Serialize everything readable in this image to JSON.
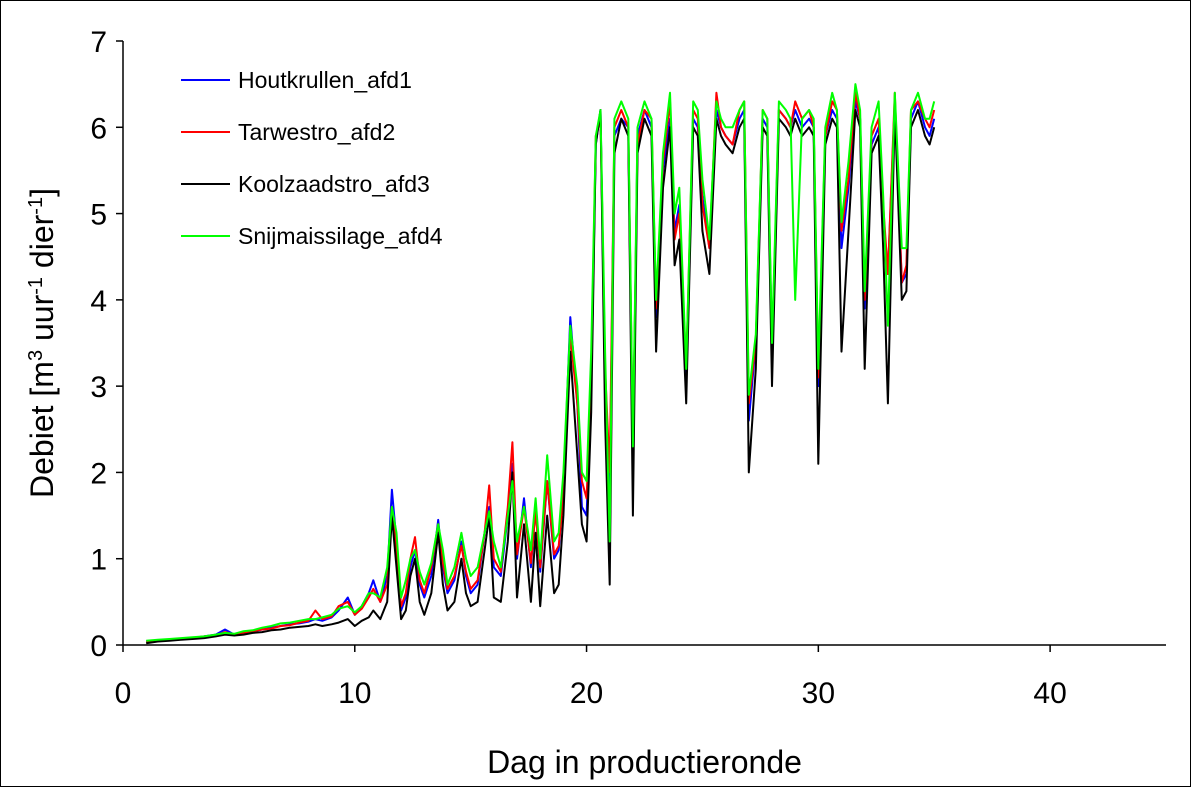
{
  "chart_data": {
    "type": "line",
    "title": "",
    "xlabel": "Dag in productieronde",
    "ylabel": "Debiet [m³ uur⁻¹ dier⁻¹]",
    "ylabel_parts": [
      "Debiet [m",
      "3",
      " uur",
      "-1",
      " dier",
      "-1",
      "]"
    ],
    "xlim": [
      0,
      45
    ],
    "ylim": [
      0,
      7
    ],
    "xticks": [
      0,
      10,
      20,
      30,
      40
    ],
    "yticks": [
      0,
      1,
      2,
      3,
      4,
      5,
      6,
      7
    ],
    "grid": false,
    "legend_position": "top-left",
    "series": [
      {
        "name": "Houtkrullen_afd1",
        "color": "#0000ff",
        "x": [
          1.0,
          1.5,
          2.0,
          2.5,
          3.0,
          3.5,
          4.0,
          4.4,
          4.8,
          5.2,
          5.6,
          6.0,
          6.4,
          6.8,
          7.2,
          7.6,
          8.0,
          8.3,
          8.6,
          9.0,
          9.3,
          9.7,
          10.0,
          10.3,
          10.6,
          10.8,
          11.1,
          11.4,
          11.6,
          11.8,
          12.0,
          12.2,
          12.4,
          12.6,
          12.8,
          13.0,
          13.3,
          13.6,
          13.8,
          14.0,
          14.3,
          14.6,
          14.8,
          15.0,
          15.3,
          15.6,
          15.8,
          16.0,
          16.3,
          16.6,
          16.8,
          17.0,
          17.3,
          17.6,
          17.8,
          18.0,
          18.3,
          18.6,
          18.8,
          19.0,
          19.3,
          19.6,
          19.8,
          20.0,
          20.2,
          20.4,
          20.6,
          20.8,
          21.0,
          21.2,
          21.5,
          21.8,
          22.0,
          22.2,
          22.5,
          22.8,
          23.0,
          23.3,
          23.6,
          23.8,
          24.0,
          24.3,
          24.6,
          24.8,
          25.0,
          25.3,
          25.6,
          25.8,
          26.0,
          26.3,
          26.6,
          26.8,
          27.0,
          27.3,
          27.6,
          27.8,
          28.0,
          28.3,
          28.6,
          28.8,
          29.0,
          29.3,
          29.6,
          29.8,
          30.0,
          30.3,
          30.6,
          30.8,
          31.0,
          31.3,
          31.6,
          31.8,
          32.0,
          32.3,
          32.6,
          32.8,
          33.0,
          33.3,
          33.6,
          33.8,
          34.0,
          34.3,
          34.6,
          34.8,
          35.0
        ],
        "y": [
          0.04,
          0.05,
          0.06,
          0.07,
          0.08,
          0.1,
          0.12,
          0.18,
          0.12,
          0.15,
          0.16,
          0.18,
          0.2,
          0.22,
          0.24,
          0.25,
          0.27,
          0.3,
          0.28,
          0.32,
          0.4,
          0.55,
          0.35,
          0.45,
          0.6,
          0.75,
          0.5,
          0.8,
          1.8,
          1.2,
          0.4,
          0.55,
          0.9,
          1.1,
          0.7,
          0.55,
          0.8,
          1.45,
          0.9,
          0.6,
          0.75,
          1.2,
          0.8,
          0.6,
          0.7,
          1.3,
          1.6,
          0.9,
          0.8,
          1.5,
          2.1,
          1.0,
          1.7,
          0.9,
          1.6,
          0.85,
          1.9,
          1.0,
          1.1,
          1.8,
          3.8,
          2.8,
          1.6,
          1.5,
          3.0,
          5.8,
          6.2,
          3.0,
          1.8,
          5.9,
          6.1,
          6.0,
          2.1,
          5.9,
          6.2,
          6.0,
          3.8,
          5.5,
          6.1,
          4.8,
          5.1,
          3.1,
          6.1,
          6.0,
          5.2,
          4.6,
          6.2,
          6.0,
          5.9,
          5.8,
          6.1,
          6.2,
          2.6,
          3.5,
          6.1,
          6.0,
          3.4,
          6.2,
          6.1,
          6.0,
          6.2,
          6.0,
          6.1,
          6.0,
          3.0,
          5.9,
          6.2,
          6.1,
          4.6,
          5.3,
          6.3,
          6.1,
          3.9,
          5.8,
          6.0,
          5.0,
          4.3,
          6.3,
          4.2,
          4.3,
          6.1,
          6.3,
          6.0,
          5.9,
          6.1
        ]
      },
      {
        "name": "Tarwestro_afd2",
        "color": "#ff0000",
        "x": [
          1.0,
          1.5,
          2.0,
          2.5,
          3.0,
          3.5,
          4.0,
          4.4,
          4.8,
          5.2,
          5.6,
          6.0,
          6.4,
          6.8,
          7.2,
          7.6,
          8.0,
          8.3,
          8.6,
          9.0,
          9.3,
          9.7,
          10.0,
          10.3,
          10.6,
          10.8,
          11.1,
          11.4,
          11.6,
          11.8,
          12.0,
          12.2,
          12.4,
          12.6,
          12.8,
          13.0,
          13.3,
          13.6,
          13.8,
          14.0,
          14.3,
          14.6,
          14.8,
          15.0,
          15.3,
          15.6,
          15.8,
          16.0,
          16.3,
          16.6,
          16.8,
          17.0,
          17.3,
          17.6,
          17.8,
          18.0,
          18.3,
          18.6,
          18.8,
          19.0,
          19.3,
          19.6,
          19.8,
          20.0,
          20.2,
          20.4,
          20.6,
          20.8,
          21.0,
          21.2,
          21.5,
          21.8,
          22.0,
          22.2,
          22.5,
          22.8,
          23.0,
          23.3,
          23.6,
          23.8,
          24.0,
          24.3,
          24.6,
          24.8,
          25.0,
          25.3,
          25.6,
          25.8,
          26.0,
          26.3,
          26.6,
          26.8,
          27.0,
          27.3,
          27.6,
          27.8,
          28.0,
          28.3,
          28.6,
          28.8,
          29.0,
          29.3,
          29.6,
          29.8,
          30.0,
          30.3,
          30.6,
          30.8,
          31.0,
          31.3,
          31.6,
          31.8,
          32.0,
          32.3,
          32.6,
          32.8,
          33.0,
          33.3,
          33.6,
          33.8,
          34.0,
          34.3,
          34.6,
          34.8,
          35.0
        ],
        "y": [
          0.03,
          0.05,
          0.06,
          0.07,
          0.08,
          0.1,
          0.11,
          0.15,
          0.12,
          0.14,
          0.16,
          0.18,
          0.19,
          0.22,
          0.23,
          0.26,
          0.28,
          0.4,
          0.3,
          0.33,
          0.45,
          0.5,
          0.35,
          0.42,
          0.55,
          0.65,
          0.5,
          0.7,
          1.6,
          1.1,
          0.45,
          0.6,
          1.0,
          1.25,
          0.75,
          0.6,
          0.9,
          1.4,
          0.95,
          0.65,
          0.8,
          1.15,
          0.85,
          0.65,
          0.75,
          1.3,
          1.85,
          1.0,
          0.85,
          1.6,
          2.35,
          1.05,
          1.6,
          0.95,
          1.55,
          0.9,
          1.9,
          1.05,
          1.15,
          1.7,
          3.6,
          2.8,
          1.9,
          1.7,
          3.1,
          5.9,
          6.1,
          3.2,
          2.0,
          6.0,
          6.2,
          6.0,
          2.2,
          5.8,
          6.2,
          6.1,
          3.9,
          5.6,
          6.3,
          4.7,
          5.0,
          3.2,
          6.2,
          6.1,
          5.1,
          4.6,
          6.4,
          6.0,
          5.9,
          5.8,
          6.2,
          6.3,
          2.8,
          3.5,
          6.2,
          6.1,
          3.3,
          6.2,
          6.1,
          6.0,
          6.3,
          6.1,
          6.2,
          6.0,
          3.1,
          5.9,
          6.3,
          6.2,
          4.8,
          5.4,
          6.4,
          6.1,
          4.0,
          5.9,
          6.1,
          5.1,
          4.3,
          6.4,
          4.2,
          4.4,
          6.2,
          6.3,
          6.1,
          6.0,
          6.2
        ]
      },
      {
        "name": "Koolzaadstro_afd3",
        "color": "#000000",
        "x": [
          1.0,
          1.5,
          2.0,
          2.5,
          3.0,
          3.5,
          4.0,
          4.4,
          4.8,
          5.2,
          5.6,
          6.0,
          6.4,
          6.8,
          7.2,
          7.6,
          8.0,
          8.3,
          8.6,
          9.0,
          9.3,
          9.7,
          10.0,
          10.3,
          10.6,
          10.8,
          11.1,
          11.4,
          11.6,
          11.8,
          12.0,
          12.2,
          12.4,
          12.6,
          12.8,
          13.0,
          13.3,
          13.6,
          13.8,
          14.0,
          14.3,
          14.6,
          14.8,
          15.0,
          15.3,
          15.6,
          15.8,
          16.0,
          16.3,
          16.6,
          16.8,
          17.0,
          17.3,
          17.6,
          17.8,
          18.0,
          18.3,
          18.6,
          18.8,
          19.0,
          19.3,
          19.6,
          19.8,
          20.0,
          20.2,
          20.4,
          20.6,
          20.8,
          21.0,
          21.2,
          21.5,
          21.8,
          22.0,
          22.2,
          22.5,
          22.8,
          23.0,
          23.3,
          23.6,
          23.8,
          24.0,
          24.3,
          24.6,
          24.8,
          25.0,
          25.3,
          25.6,
          25.8,
          26.0,
          26.3,
          26.6,
          26.8,
          27.0,
          27.3,
          27.6,
          27.8,
          28.0,
          28.3,
          28.6,
          28.8,
          29.0,
          29.3,
          29.6,
          29.8,
          30.0,
          30.3,
          30.6,
          30.8,
          31.0,
          31.3,
          31.6,
          31.8,
          32.0,
          32.3,
          32.6,
          32.8,
          33.0,
          33.3,
          33.6,
          33.8,
          34.0,
          34.3,
          34.6,
          34.8,
          35.0
        ],
        "y": [
          0.02,
          0.04,
          0.05,
          0.06,
          0.07,
          0.08,
          0.1,
          0.12,
          0.11,
          0.12,
          0.14,
          0.15,
          0.17,
          0.18,
          0.2,
          0.21,
          0.22,
          0.24,
          0.22,
          0.24,
          0.26,
          0.3,
          0.22,
          0.28,
          0.32,
          0.4,
          0.3,
          0.5,
          1.5,
          0.9,
          0.3,
          0.4,
          0.8,
          1.0,
          0.5,
          0.35,
          0.6,
          1.3,
          0.7,
          0.4,
          0.5,
          1.0,
          0.6,
          0.45,
          0.5,
          1.1,
          1.5,
          0.55,
          0.5,
          1.2,
          2.0,
          0.55,
          1.4,
          0.5,
          1.3,
          0.45,
          1.5,
          0.6,
          0.7,
          1.5,
          3.4,
          2.2,
          1.4,
          1.2,
          2.7,
          5.8,
          6.2,
          2.6,
          0.7,
          5.7,
          6.1,
          5.9,
          1.5,
          5.7,
          6.1,
          5.9,
          3.4,
          5.3,
          6.0,
          4.4,
          4.7,
          2.8,
          6.0,
          5.9,
          4.8,
          4.3,
          6.1,
          5.9,
          5.8,
          5.7,
          6.0,
          6.1,
          2.0,
          3.2,
          6.0,
          5.9,
          3.0,
          6.1,
          6.0,
          5.9,
          6.1,
          5.9,
          6.0,
          5.9,
          2.1,
          5.8,
          6.1,
          6.0,
          3.4,
          4.8,
          6.2,
          6.0,
          3.2,
          5.7,
          5.9,
          4.6,
          2.8,
          6.2,
          4.0,
          4.1,
          6.0,
          6.2,
          5.9,
          5.8,
          6.0
        ]
      },
      {
        "name": "Snijmaissilage_afd4",
        "color": "#00ff00",
        "x": [
          1.0,
          1.5,
          2.0,
          2.5,
          3.0,
          3.5,
          4.0,
          4.4,
          4.8,
          5.2,
          5.6,
          6.0,
          6.4,
          6.8,
          7.2,
          7.6,
          8.0,
          8.3,
          8.6,
          9.0,
          9.3,
          9.7,
          10.0,
          10.3,
          10.6,
          10.8,
          11.1,
          11.4,
          11.6,
          11.8,
          12.0,
          12.2,
          12.4,
          12.6,
          12.8,
          13.0,
          13.3,
          13.6,
          13.8,
          14.0,
          14.3,
          14.6,
          14.8,
          15.0,
          15.3,
          15.6,
          15.8,
          16.0,
          16.3,
          16.6,
          16.8,
          17.0,
          17.3,
          17.6,
          17.8,
          18.0,
          18.3,
          18.6,
          18.8,
          19.0,
          19.3,
          19.6,
          19.8,
          20.0,
          20.2,
          20.4,
          20.6,
          20.8,
          21.0,
          21.2,
          21.5,
          21.8,
          22.0,
          22.2,
          22.5,
          22.8,
          23.0,
          23.3,
          23.6,
          23.8,
          24.0,
          24.3,
          24.6,
          24.8,
          25.0,
          25.3,
          25.6,
          25.8,
          26.0,
          26.3,
          26.6,
          26.8,
          27.0,
          27.3,
          27.6,
          27.8,
          28.0,
          28.3,
          28.6,
          28.8,
          29.0,
          29.3,
          29.6,
          29.8,
          30.0,
          30.3,
          30.6,
          30.8,
          31.0,
          31.3,
          31.6,
          31.8,
          32.0,
          32.3,
          32.6,
          32.8,
          33.0,
          33.3,
          33.6,
          33.8,
          34.0,
          34.3,
          34.6,
          34.8,
          35.0
        ],
        "y": [
          0.05,
          0.06,
          0.07,
          0.08,
          0.09,
          0.1,
          0.12,
          0.14,
          0.13,
          0.16,
          0.17,
          0.2,
          0.22,
          0.25,
          0.26,
          0.28,
          0.3,
          0.3,
          0.32,
          0.35,
          0.42,
          0.45,
          0.38,
          0.45,
          0.6,
          0.6,
          0.55,
          0.9,
          1.6,
          1.3,
          0.55,
          0.75,
          1.0,
          1.1,
          0.85,
          0.7,
          0.95,
          1.4,
          1.1,
          0.7,
          0.9,
          1.3,
          1.0,
          0.8,
          0.9,
          1.3,
          1.55,
          1.2,
          0.9,
          1.5,
          1.9,
          1.2,
          1.6,
          1.1,
          1.7,
          1.0,
          2.2,
          1.2,
          1.3,
          2.0,
          3.7,
          3.0,
          2.0,
          1.9,
          3.4,
          5.9,
          6.2,
          3.4,
          1.2,
          6.1,
          6.3,
          6.1,
          2.3,
          6.0,
          6.3,
          6.1,
          4.0,
          5.7,
          6.4,
          5.0,
          5.3,
          3.2,
          6.3,
          6.2,
          5.4,
          4.7,
          6.3,
          6.1,
          6.0,
          6.0,
          6.2,
          6.3,
          2.9,
          3.6,
          6.2,
          6.1,
          3.5,
          6.3,
          6.2,
          6.1,
          4.0,
          6.1,
          6.2,
          6.1,
          3.2,
          6.0,
          6.4,
          6.2,
          4.9,
          5.6,
          6.5,
          6.2,
          4.1,
          6.0,
          6.3,
          5.2,
          3.7,
          6.4,
          4.6,
          4.6,
          6.2,
          6.4,
          6.1,
          6.1,
          6.3
        ]
      }
    ]
  }
}
